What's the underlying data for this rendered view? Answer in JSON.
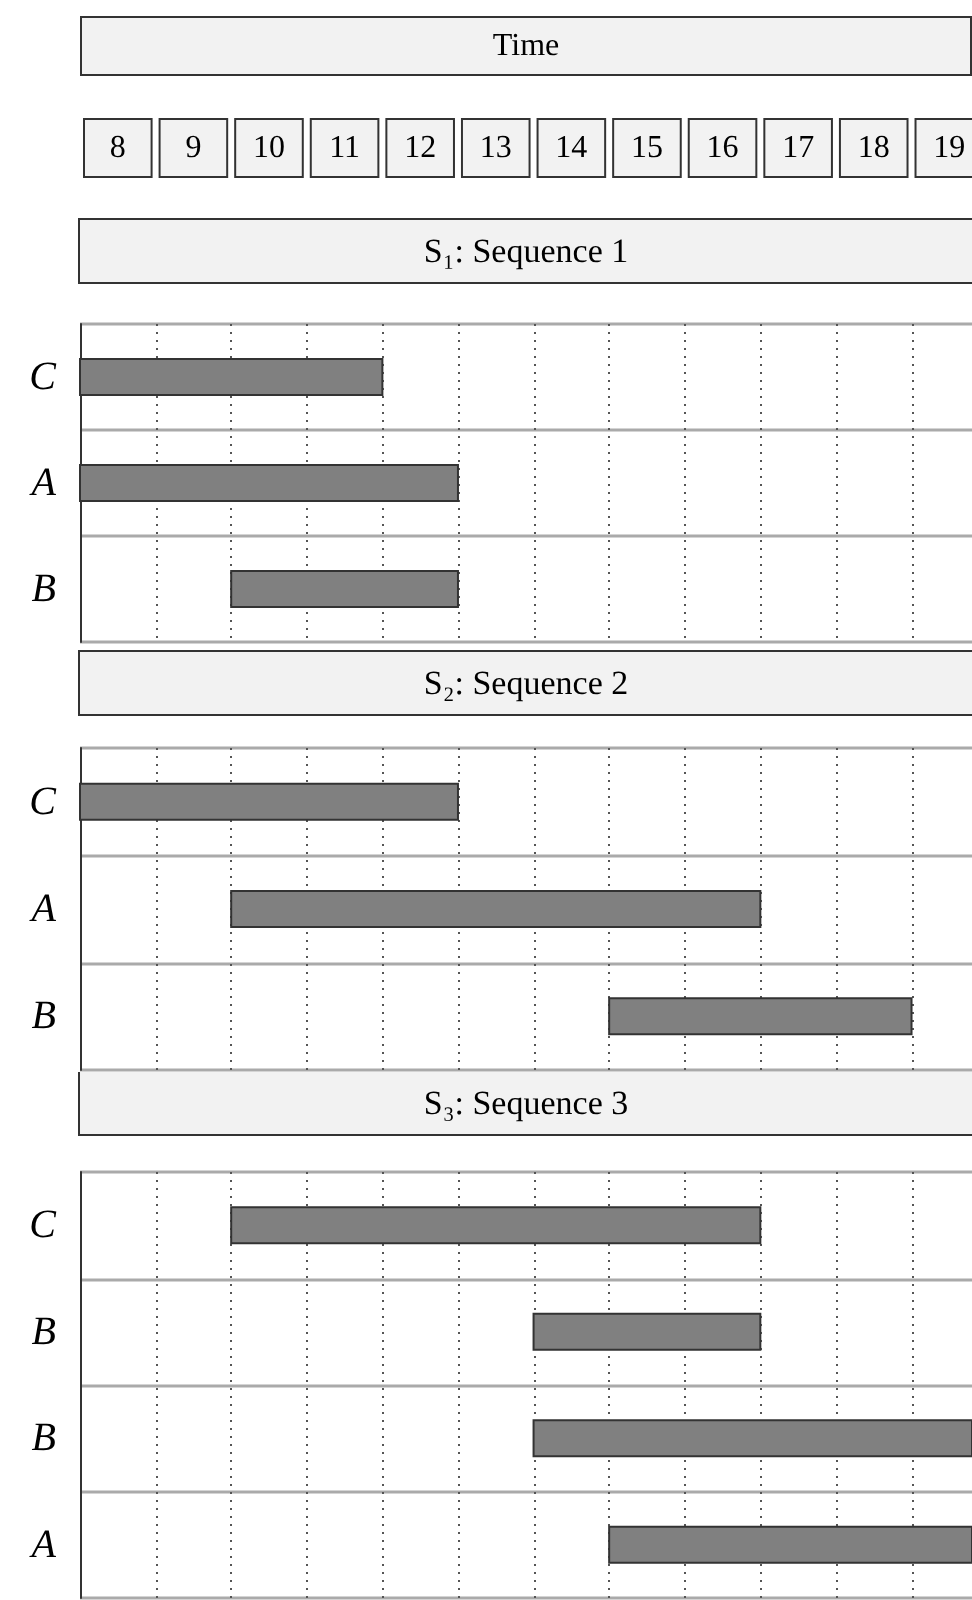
{
  "chart_data": [
    {
      "type": "bar",
      "orientation": "horizontal",
      "title": "S₁: Sequence 1",
      "xlabel": "Time",
      "categories": [
        "C",
        "A",
        "B"
      ],
      "base": [
        8,
        8,
        10
      ],
      "values": [
        4,
        5,
        3
      ],
      "color": "#808080",
      "xlim": [
        8,
        19.8
      ],
      "xticks": [
        {
          "value": 8.5,
          "label": "8"
        },
        {
          "value": 9.5,
          "label": "9"
        },
        {
          "value": 10.5,
          "label": "10"
        },
        {
          "value": 11.5,
          "label": "11"
        },
        {
          "value": 12.5,
          "label": "12"
        },
        {
          "value": 13.5,
          "label": "13"
        },
        {
          "value": 14.5,
          "label": "14"
        },
        {
          "value": 15.5,
          "label": "15"
        },
        {
          "value": 16.5,
          "label": "16"
        },
        {
          "value": 17.5,
          "label": "17"
        },
        {
          "value": 18.5,
          "label": "18"
        },
        {
          "value": 19.5,
          "label": "19"
        },
        {
          "value": 9,
          "label": null
        },
        {
          "value": 10,
          "label": null
        },
        {
          "value": 11,
          "label": null
        },
        {
          "value": 12,
          "label": null
        },
        {
          "value": 13,
          "label": null
        },
        {
          "value": 14,
          "label": null
        },
        {
          "value": 15,
          "label": null
        },
        {
          "value": 16,
          "label": null
        },
        {
          "value": 17,
          "label": null
        },
        {
          "value": 18,
          "label": null
        },
        {
          "value": 19,
          "label": null
        }
      ],
      "grid": "x"
    },
    {
      "type": "bar",
      "orientation": "horizontal",
      "title": "S₂: Sequence 2",
      "categories": [
        "C",
        "A",
        "B"
      ],
      "base": [
        8,
        10,
        15
      ],
      "values": [
        5,
        7,
        4
      ],
      "color": "#808080",
      "xlim": [
        8,
        19.8
      ],
      "xticks": [
        {
          "value": 9,
          "label": null
        },
        {
          "value": 10,
          "label": null
        },
        {
          "value": 11,
          "label": null
        },
        {
          "value": 12,
          "label": null
        },
        {
          "value": 13,
          "label": null
        },
        {
          "value": 14,
          "label": null
        },
        {
          "value": 15,
          "label": null
        },
        {
          "value": 16,
          "label": null
        },
        {
          "value": 17,
          "label": null
        },
        {
          "value": 18,
          "label": null
        },
        {
          "value": 19,
          "label": null
        }
      ],
      "grid": "x",
      "tick_labels": "y"
    },
    {
      "type": "bar",
      "orientation": "horizontal",
      "title": "S₃: Sequence 3",
      "categories": [
        "C",
        "B",
        "B",
        "A"
      ],
      "base": [
        10,
        14,
        14,
        15
      ],
      "values": [
        7,
        3,
        5.8,
        4.8
      ],
      "color": "#808080",
      "xlim": [
        8,
        19.8
      ],
      "xticks": [
        {
          "value": 9,
          "label": null
        },
        {
          "value": 10,
          "label": null
        },
        {
          "value": 11,
          "label": null
        },
        {
          "value": 12,
          "label": null
        },
        {
          "value": 13,
          "label": null
        },
        {
          "value": 14,
          "label": null
        },
        {
          "value": 15,
          "label": null
        },
        {
          "value": 16,
          "label": null
        },
        {
          "value": 17,
          "label": null
        },
        {
          "value": 18,
          "label": null
        },
        {
          "value": 19,
          "label": null
        }
      ],
      "grid": "x",
      "tick_labels": "y"
    }
  ]
}
